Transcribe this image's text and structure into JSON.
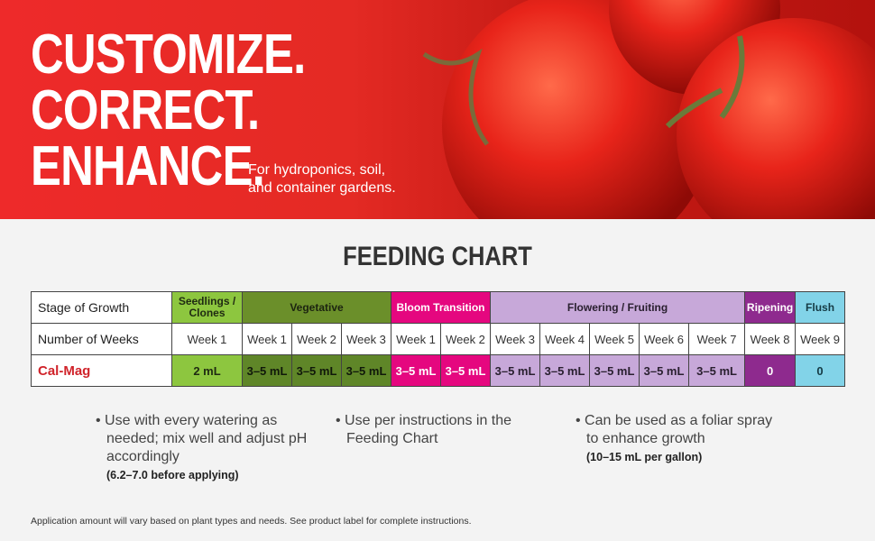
{
  "banner": {
    "headline": [
      "CUSTOMIZE.",
      "CORRECT.",
      "ENHANCE."
    ],
    "tagline": [
      "For hydroponics, soil,",
      "and container gardens."
    ]
  },
  "feeding_chart": {
    "title": "FEEDING CHART",
    "stages": {
      "label": "Stage of Growth",
      "cells": [
        "Seedlings / Clones",
        "Vegetative",
        "Bloom Transition",
        "Flowering / Fruiting",
        "Ripening",
        "Flush"
      ]
    },
    "weeks": {
      "label": "Number of Weeks",
      "cells": [
        "Week 1",
        "Week 1",
        "Week 2",
        "Week 3",
        "Week 1",
        "Week 2",
        "Week 3",
        "Week 4",
        "Week 5",
        "Week 6",
        "Week 7",
        "Week 8",
        "Week 9"
      ]
    },
    "product": {
      "label": "Cal-Mag",
      "cells": [
        "2 mL",
        "3–5 mL",
        "3–5 mL",
        "3–5 mL",
        "3–5 mL",
        "3–5 mL",
        "3–5 mL",
        "3–5 mL",
        "3–5 mL",
        "3–5 mL",
        "3–5 mL",
        "0",
        "0"
      ]
    }
  },
  "notes": [
    {
      "text": "Use with every watering as needed; mix well and adjust pH accordingly",
      "detail": "(6.2–7.0 before applying)"
    },
    {
      "text": "Use per instructions in the Feeding Chart"
    },
    {
      "text": "Can be used as a foliar spray to enhance growth",
      "detail": "(10–15 mL per gallon)"
    }
  ],
  "footnote": "Application amount will vary based on plant types and needs. See product label for complete instructions."
}
